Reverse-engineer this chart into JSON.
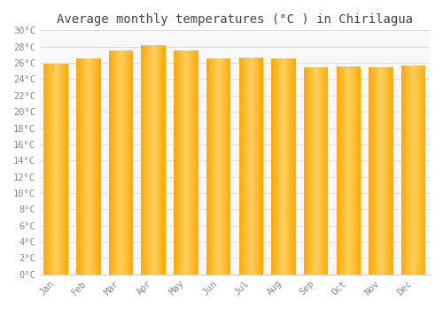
{
  "title": "Average monthly temperatures (°C ) in Chirilagua",
  "months": [
    "Jan",
    "Feb",
    "Mar",
    "Apr",
    "May",
    "Jun",
    "Jul",
    "Aug",
    "Sep",
    "Oct",
    "Nov",
    "Dec"
  ],
  "temperatures": [
    25.9,
    26.5,
    27.5,
    28.2,
    27.5,
    26.6,
    26.7,
    26.5,
    25.5,
    25.6,
    25.5,
    25.7
  ],
  "bar_color_center": "#FFD060",
  "bar_color_edge": "#FFA000",
  "ylim": [
    0,
    30
  ],
  "yticks": [
    0,
    2,
    4,
    6,
    8,
    10,
    12,
    14,
    16,
    18,
    20,
    22,
    24,
    26,
    28,
    30
  ],
  "background_color": "#FFFFFF",
  "plot_bg_color": "#F8F8F8",
  "grid_color": "#E0E0E0",
  "title_fontsize": 10,
  "tick_fontsize": 7.5,
  "font_family": "monospace",
  "bar_width": 0.75
}
